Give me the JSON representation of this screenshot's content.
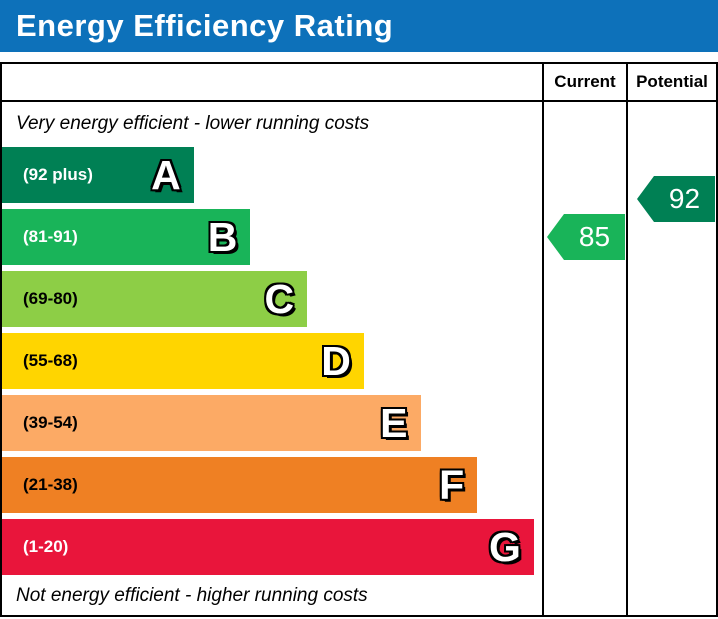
{
  "title_bar": {
    "title": "Energy Efficiency Rating",
    "background": "#0d71ba"
  },
  "chart_data": {
    "type": "bar",
    "subtype": "epc-energy-efficiency-rating",
    "title": "Energy Efficiency Rating",
    "top_note": "Very energy efficient - lower running costs",
    "bottom_note": "Not energy efficient - higher running costs",
    "columns": [
      "Current",
      "Potential"
    ],
    "bands": [
      {
        "letter": "A",
        "range": "(92 plus)",
        "color": "#008054",
        "label_color": "#ffffff",
        "width_pct": 35.5
      },
      {
        "letter": "B",
        "range": "(81-91)",
        "color": "#19b459",
        "label_color": "#ffffff",
        "width_pct": 46
      },
      {
        "letter": "C",
        "range": "(69-80)",
        "color": "#8dce46",
        "label_color": "#000000",
        "width_pct": 56.5
      },
      {
        "letter": "D",
        "range": "(55-68)",
        "color": "#ffd500",
        "label_color": "#000000",
        "width_pct": 67
      },
      {
        "letter": "E",
        "range": "(39-54)",
        "color": "#fcaa65",
        "label_color": "#000000",
        "width_pct": 77.5
      },
      {
        "letter": "F",
        "range": "(21-38)",
        "color": "#ef8023",
        "label_color": "#000000",
        "width_pct": 88
      },
      {
        "letter": "G",
        "range": "(1-20)",
        "color": "#e9153b",
        "label_color": "#ffffff",
        "width_pct": 98.5
      }
    ],
    "current": {
      "label": "Current",
      "value": "85",
      "color": "#19b459",
      "band": "B"
    },
    "potential": {
      "label": "Potential",
      "value": "92",
      "color": "#008054",
      "band": "A"
    }
  }
}
